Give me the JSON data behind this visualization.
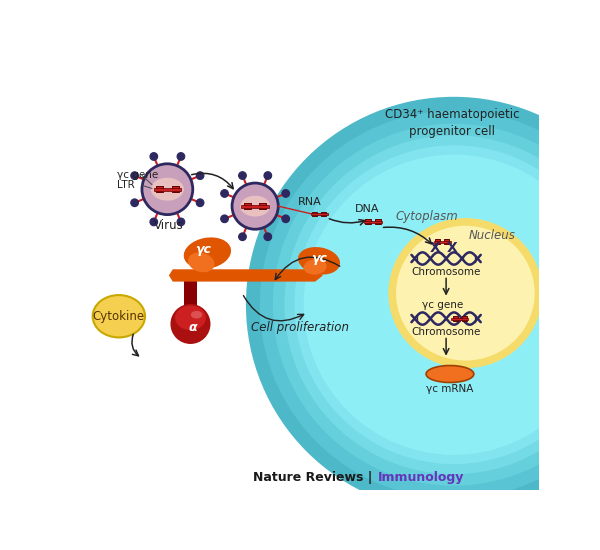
{
  "bg_color": "#ffffff",
  "cell_title": "CD34⁺ haematopoietic\nprogenitor cell",
  "cytoplasm_label": "Cytoplasm",
  "nucleus_label": "Nucleus",
  "virus_label": "Virus",
  "cytokine_label": "Cytokine",
  "rna_label": "RNA",
  "dna_label": "DNA",
  "chromosome_label": "Chromosome",
  "gc_gene_label": "γc gene",
  "chromosome_label2": "Chromosome",
  "mrna_label": "γc mRNA",
  "cell_prolif_label": "Cell proliferation",
  "gc_gene_text": "γc gene",
  "ltr_text": "LTR",
  "gc_label": "γc",
  "alpha_label": "α",
  "footer_text1": "Nature Reviews",
  "footer_sep": " | ",
  "footer_text2": "Immunology",
  "footer_color1": "#1a1a1a",
  "footer_color2": "#6633bb",
  "teal_colors": [
    "#4ab0bf",
    "#55bfcf",
    "#68ccd8",
    "#7bd8e2",
    "#90e4ec",
    "#a8eef5"
  ],
  "nucleus_color1": "#f5dc6a",
  "nucleus_color2": "#fdf2b0",
  "virus_body": "#c8a0bc",
  "virus_border": "#2d2860",
  "spike_color": "#cc2020",
  "dot_color": "#2d2860",
  "gene_color": "#cc2020",
  "dna_strand_color": "#2d2860",
  "orange_dark": "#cc4400",
  "orange_mid": "#e05500",
  "orange_light": "#f07020",
  "red_dark": "#880000",
  "red_mid": "#aa1010",
  "arrow_color": "#222222",
  "cytokine_fill": "#f5d050",
  "cytokine_edge": "#c8a800",
  "text_dark": "#222222",
  "text_mid": "#555555"
}
